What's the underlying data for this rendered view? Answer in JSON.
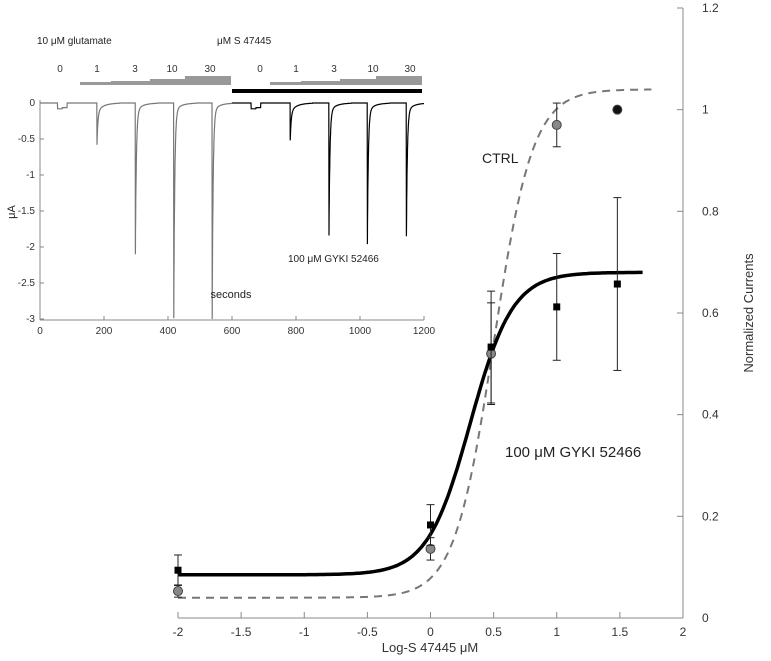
{
  "chart_data": [
    {
      "type": "scatter",
      "xlabel": "Log-S 47445 μM",
      "ylabel": "Normalized Currents",
      "xlim": [
        -2,
        2
      ],
      "ylim": [
        0,
        1.2
      ],
      "xticks": [
        "-2",
        "-1.5",
        "-1",
        "-0.5",
        "0",
        "0.5",
        "1",
        "1.5",
        "2"
      ],
      "yticks": [
        "0",
        "0.2",
        "0.4",
        "0.6",
        "0.8",
        "1",
        "1.2"
      ],
      "y_axis_side": "right",
      "grid": false,
      "series": [
        {
          "name": "CTRL",
          "marker": "circle",
          "color": "#888888",
          "x": [
            -2,
            0,
            0.48,
            1,
            1.48
          ],
          "y": [
            0.053,
            0.136,
            0.52,
            0.97,
            1.0
          ],
          "error": [
            0.012,
            0.022,
            0.1,
            0.043,
            0
          ],
          "fit": {
            "style": "dashed",
            "bottom": 0.04,
            "top": 1.04,
            "logEC50": 0.5,
            "hill": 2.8,
            "x_range": [
              -2,
              1.75
            ]
          }
        },
        {
          "name": "100 μM GYKI 52466",
          "marker": "square",
          "color": "#000000",
          "x": [
            -2,
            0,
            0.48,
            1,
            1.48
          ],
          "y": [
            0.094,
            0.183,
            0.533,
            0.612,
            0.657
          ],
          "error": [
            0.03,
            0.04,
            0.11,
            0.105,
            0.17
          ],
          "fit": {
            "style": "solid",
            "bottom": 0.085,
            "top": 0.68,
            "logEC50": 0.314,
            "hill": 2.58,
            "x_range": [
              -2,
              1.68
            ]
          }
        }
      ],
      "annotations": [
        "CTRL",
        "100 μM GYKI 52466"
      ]
    },
    {
      "type": "line",
      "xlabel": "seconds",
      "ylabel": "μA",
      "xlim": [
        0,
        1200
      ],
      "ylim": [
        -3,
        0
      ],
      "xticks": [
        "0",
        "200",
        "400",
        "600",
        "800",
        "1000",
        "1200"
      ],
      "yticks": [
        "0",
        "-0.5",
        "-1",
        "-1.5",
        "-2",
        "-2.5",
        "-3"
      ],
      "title_left": "10 μM glutamate",
      "title_right": "μM S 47445",
      "concentrations": [
        "0",
        "1",
        "3",
        "10",
        "30",
        "0",
        "1",
        "3",
        "10",
        "30"
      ],
      "annotation": "100 μM GYKI 52466",
      "trace_peaks": {
        "time": [
          55,
          178,
          298,
          418,
          538,
          660,
          782,
          903,
          1023,
          1145
        ],
        "current": [
          -0.08,
          -0.46,
          -1.98,
          -2.87,
          -2.88,
          -0.08,
          -0.4,
          -1.72,
          -1.84,
          -1.73
        ]
      },
      "colors": {
        "control": "#777777",
        "gyki": "#000000"
      }
    }
  ]
}
